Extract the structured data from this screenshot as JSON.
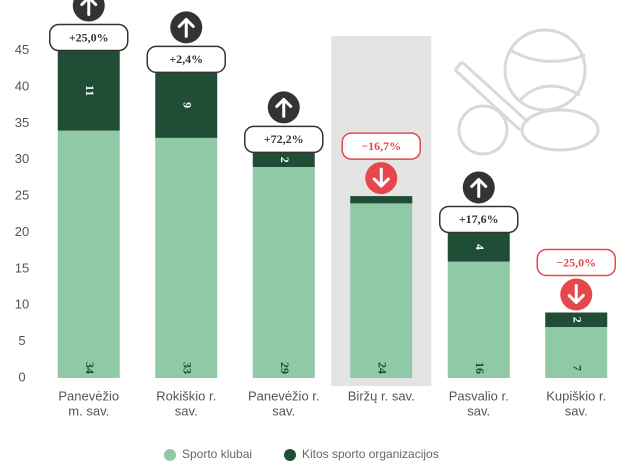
{
  "chart_data": {
    "type": "stacked-bar",
    "categories": [
      [
        "Panevėžio",
        "m. sav."
      ],
      [
        "Rokiškio r.",
        "sav."
      ],
      [
        "Panevėžio r.",
        "sav."
      ],
      [
        "Biržų r. sav."
      ],
      [
        "Pasvalio r.",
        "sav."
      ],
      [
        "Kupiškio r.",
        "sav."
      ]
    ],
    "series": [
      {
        "name": "Sporto klubai",
        "color": "#8fc9a5",
        "values": [
          34,
          33,
          29,
          24,
          16,
          7
        ]
      },
      {
        "name": "Kitos sporto organizacijos",
        "color": "#1f4d36",
        "values": [
          11,
          9,
          2,
          1,
          4,
          2
        ]
      }
    ],
    "change_values": [
      25.0,
      2.4,
      72.2,
      -16.7,
      17.6,
      -25.0
    ],
    "change_labels": [
      "+25,0%",
      "+2,4%",
      "+72,2%",
      "−16,7%",
      "+17,6%",
      "−25,0%"
    ],
    "highlight_index": 3,
    "ylim": [
      0,
      47
    ],
    "yticks": [
      0,
      5,
      10,
      15,
      20,
      25,
      30,
      35,
      40,
      45
    ]
  }
}
